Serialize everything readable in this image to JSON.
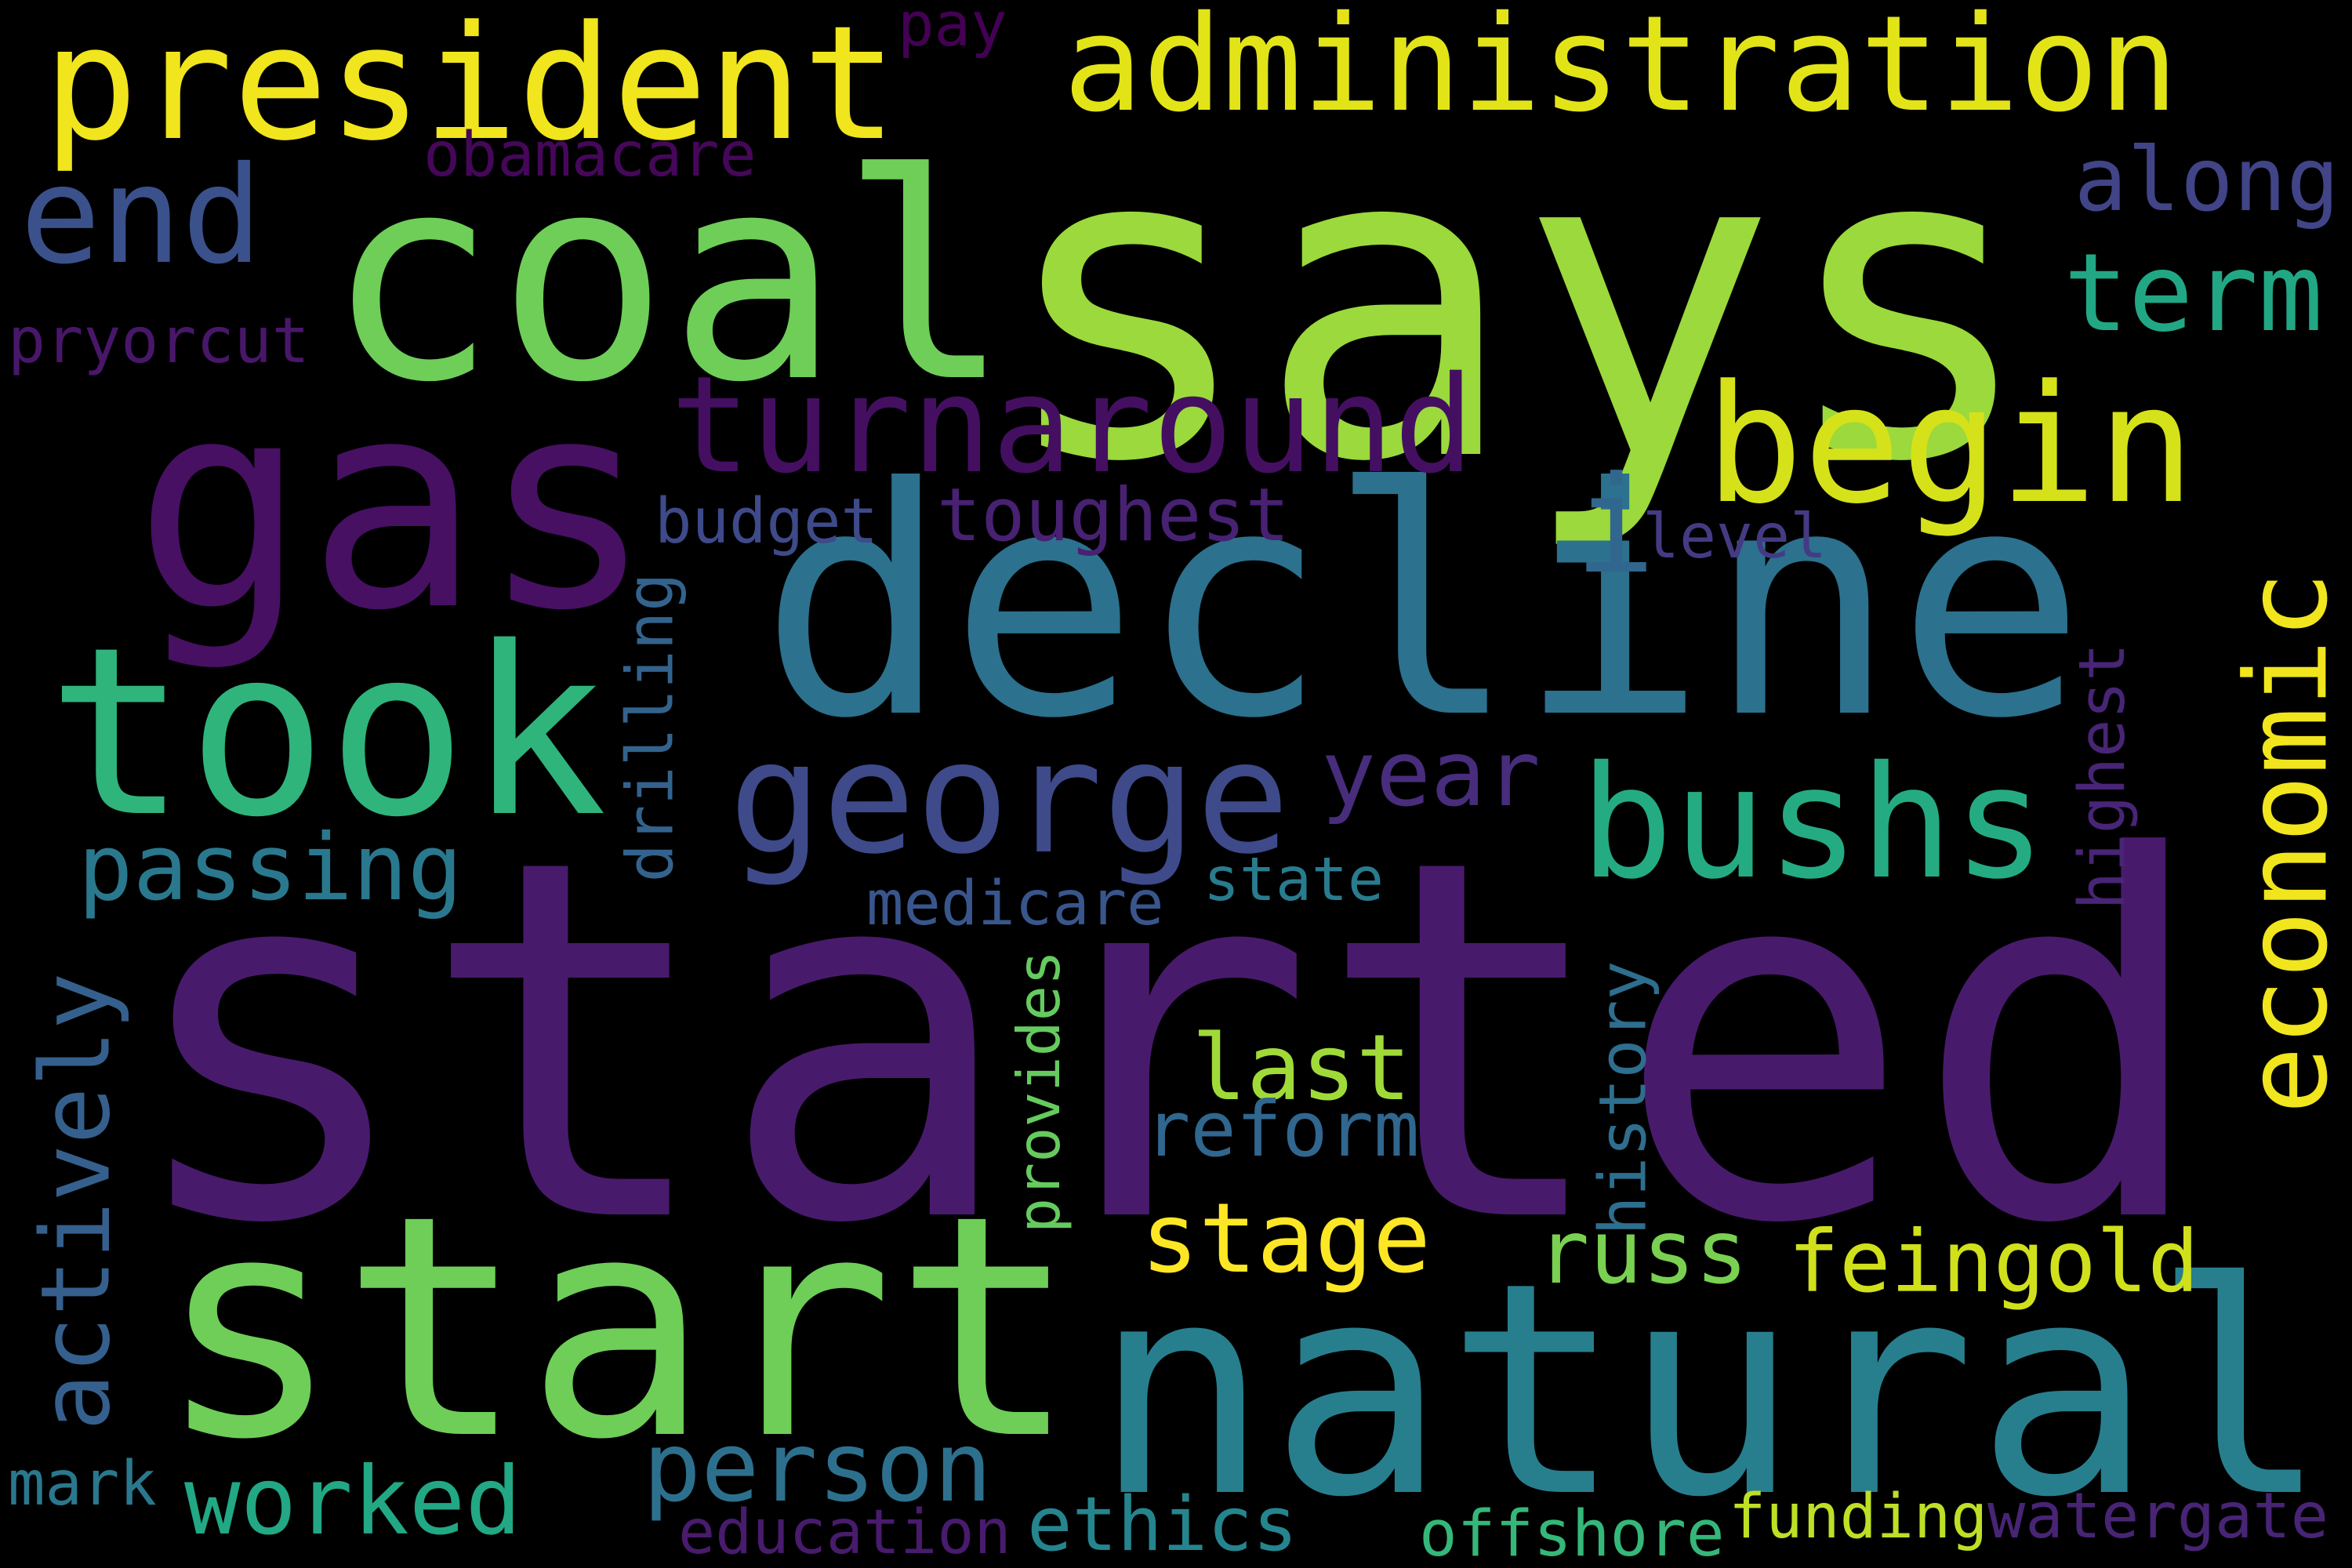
{
  "words": [
    {
      "id": "started",
      "text": "started",
      "color": "#481a6c",
      "vertical": false
    },
    {
      "id": "says",
      "text": "says",
      "color": "#9bd93c",
      "vertical": false
    },
    {
      "id": "coal",
      "text": "coal",
      "color": "#6ece58",
      "vertical": false
    },
    {
      "id": "decline",
      "text": "decline",
      "color": "#2c718e",
      "vertical": false
    },
    {
      "id": "natural",
      "text": "natural",
      "color": "#277f8e",
      "vertical": false
    },
    {
      "id": "start",
      "text": "start",
      "color": "#6ece58",
      "vertical": false
    },
    {
      "id": "gas",
      "text": "gas",
      "color": "#471063",
      "vertical": false
    },
    {
      "id": "took",
      "text": "took",
      "color": "#2fb47c",
      "vertical": false
    },
    {
      "id": "george",
      "text": "george",
      "color": "#3e4a89",
      "vertical": false
    },
    {
      "id": "president",
      "text": "president",
      "color": "#f1e51d",
      "vertical": false
    },
    {
      "id": "administration",
      "text": "administration",
      "color": "#e2e418",
      "vertical": false
    },
    {
      "id": "turnaround",
      "text": "turnaround",
      "color": "#440f61",
      "vertical": false
    },
    {
      "id": "begin",
      "text": "begin",
      "color": "#d5e21a",
      "vertical": false
    },
    {
      "id": "bushs",
      "text": "bushs",
      "color": "#25ab82",
      "vertical": false
    },
    {
      "id": "economic",
      "text": "economic",
      "color": "#f1e51d",
      "vertical": true
    },
    {
      "id": "end",
      "text": "end",
      "color": "#3b518b",
      "vertical": false
    },
    {
      "id": "term",
      "text": "term",
      "color": "#22a785",
      "vertical": false
    },
    {
      "id": "along",
      "text": "along",
      "color": "#414487",
      "vertical": false
    },
    {
      "id": "i",
      "text": "i",
      "color": "#31668e",
      "vertical": false
    },
    {
      "id": "year",
      "text": "year",
      "color": "#472d7b",
      "vertical": false
    },
    {
      "id": "passing",
      "text": "passing",
      "color": "#2a788e",
      "vertical": false
    },
    {
      "id": "toughest",
      "text": "toughest",
      "color": "#482173",
      "vertical": false
    },
    {
      "id": "budget",
      "text": "budget",
      "color": "#3e4a89",
      "vertical": false
    },
    {
      "id": "level",
      "text": "level",
      "color": "#443b84",
      "vertical": false
    },
    {
      "id": "drilling",
      "text": "drilling",
      "color": "#33638d",
      "vertical": true
    },
    {
      "id": "highest",
      "text": "highest",
      "color": "#482576",
      "vertical": true
    },
    {
      "id": "medicare",
      "text": "medicare",
      "color": "#39568c",
      "vertical": false
    },
    {
      "id": "state",
      "text": "state",
      "color": "#297b8e",
      "vertical": false
    },
    {
      "id": "last",
      "text": "last",
      "color": "#a0da39",
      "vertical": false
    },
    {
      "id": "reform",
      "text": "reform",
      "color": "#31668e",
      "vertical": false
    },
    {
      "id": "actively",
      "text": "actively",
      "color": "#35608d",
      "vertical": true
    },
    {
      "id": "provides",
      "text": "provides",
      "color": "#65cb5e",
      "vertical": true
    },
    {
      "id": "history",
      "text": "history",
      "color": "#2e6e8e",
      "vertical": true
    },
    {
      "id": "stage",
      "text": "stage",
      "color": "#fde725",
      "vertical": false
    },
    {
      "id": "russ",
      "text": "russ",
      "color": "#7ad151",
      "vertical": false
    },
    {
      "id": "feingold",
      "text": "feingold",
      "color": "#d0e11c",
      "vertical": false
    },
    {
      "id": "person",
      "text": "person",
      "color": "#2d708e",
      "vertical": false
    },
    {
      "id": "worked",
      "text": "worked",
      "color": "#22a884",
      "vertical": false
    },
    {
      "id": "ethics",
      "text": "ethics",
      "color": "#25858e",
      "vertical": false
    },
    {
      "id": "education",
      "text": "education",
      "color": "#481b6d",
      "vertical": false
    },
    {
      "id": "offshore",
      "text": "offshore",
      "color": "#35b779",
      "vertical": false
    },
    {
      "id": "funding",
      "text": "funding",
      "color": "#bddf26",
      "vertical": false
    },
    {
      "id": "watergate",
      "text": "watergate",
      "color": "#482475",
      "vertical": false
    },
    {
      "id": "mark",
      "text": "mark",
      "color": "#2a788e",
      "vertical": false
    },
    {
      "id": "pay",
      "text": "pay",
      "color": "#440154",
      "vertical": false
    },
    {
      "id": "obamacare",
      "text": "obamacare",
      "color": "#46075a",
      "vertical": false
    },
    {
      "id": "pryorcut",
      "text": "pryorcut",
      "color": "#481769",
      "vertical": false
    }
  ]
}
